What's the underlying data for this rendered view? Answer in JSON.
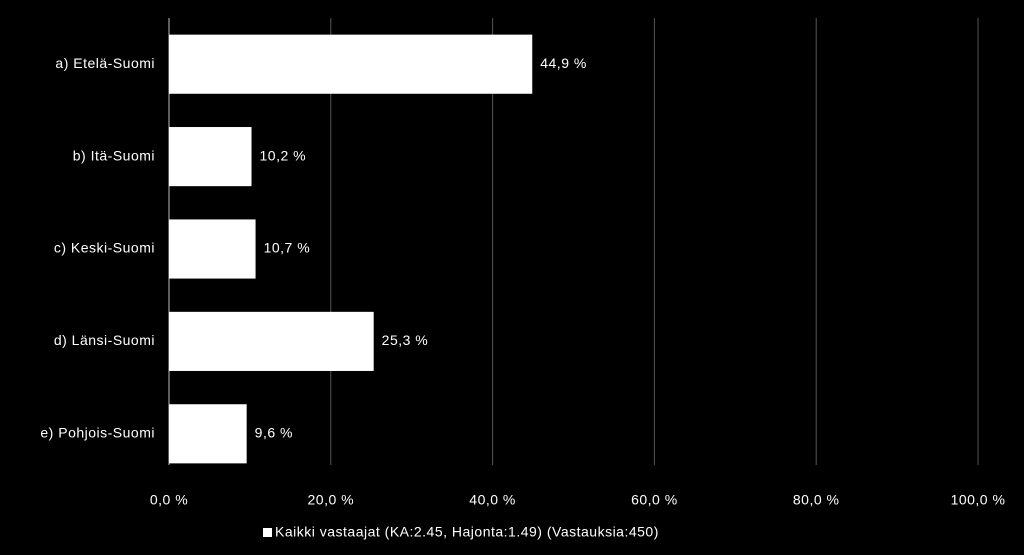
{
  "chart_data": {
    "type": "hbar",
    "categories": [
      "a) Etelä-Suomi",
      "b) Itä-Suomi",
      "c) Keski-Suomi",
      "d) Länsi-Suomi",
      "e) Pohjois-Suomi"
    ],
    "series": [
      {
        "name": "Kaikki vastaajat (KA:2.45, Hajonta:1.49) (Vastauksia:450)",
        "color": "#ffffff",
        "values": [
          44.9,
          10.2,
          10.7,
          25.3,
          9.6
        ],
        "value_labels": [
          "44,9 %",
          "10,2 %",
          "10,7 %",
          "25,3 %",
          "9,6 %"
        ]
      }
    ],
    "xlim": [
      0,
      100
    ],
    "xticks": [
      {
        "value": 0,
        "label": "0,0 %"
      },
      {
        "value": 20,
        "label": "20,0 %"
      },
      {
        "value": 40,
        "label": "40,0 %"
      },
      {
        "value": 60,
        "label": "60,0 %"
      },
      {
        "value": 80,
        "label": "80,0 %"
      },
      {
        "value": 100,
        "label": "100,0 %"
      }
    ],
    "grid": true,
    "legend": "bottom"
  }
}
